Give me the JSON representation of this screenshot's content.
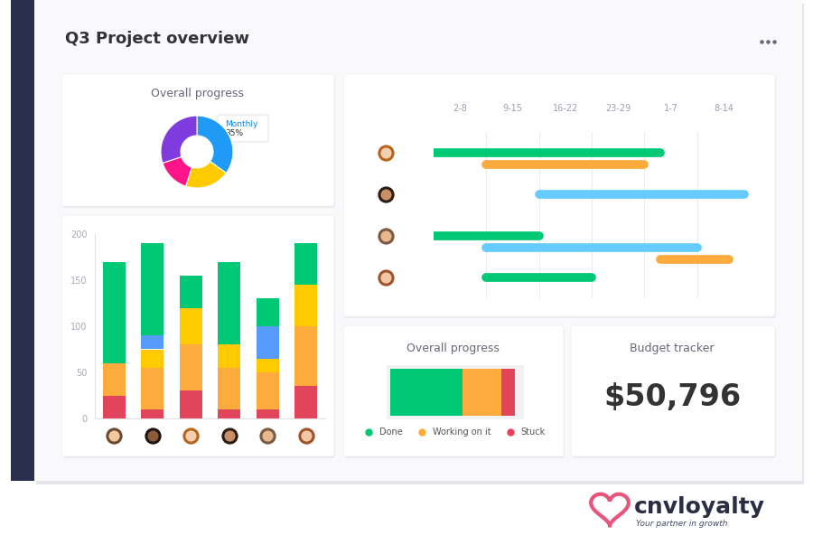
{
  "title": "Q3 Project overview",
  "chart_data": [
    {
      "type": "pie",
      "title": "Overall progress",
      "categories": [
        "Monthly",
        null,
        null,
        null
      ],
      "values": [
        35,
        20,
        15,
        30
      ],
      "value_labels": [
        "35%",
        null,
        null,
        null
      ],
      "colors": [
        "#1f9bf5",
        "#ffcb00",
        "#ff158a",
        "#7e3bdd"
      ],
      "data_labels": true
    },
    {
      "type": "bar",
      "stacked": true,
      "categories": [
        null,
        null,
        null,
        null,
        null,
        null
      ],
      "ylim": [
        0,
        200
      ],
      "yticks": [
        0,
        50,
        100,
        150,
        200
      ],
      "tick_labels": "y",
      "series": [
        {
          "color": "#e2445c",
          "values": [
            25,
            10,
            30,
            10,
            10,
            35
          ]
        },
        {
          "color": "#fdab3d",
          "values": [
            35,
            45,
            50,
            45,
            40,
            65
          ]
        },
        {
          "color": "#ffcb00",
          "values": [
            0,
            20,
            40,
            25,
            15,
            45
          ]
        },
        {
          "color": "#579bfc",
          "values": [
            0,
            15,
            0,
            0,
            35,
            0
          ]
        },
        {
          "color": "#00c875",
          "values": [
            110,
            100,
            35,
            90,
            30,
            45
          ]
        }
      ]
    },
    {
      "type": "gantt",
      "categories": [
        "2-8",
        "9-15",
        "16-22",
        "23-29",
        "1-7",
        "8-14"
      ],
      "xlim": [
        -0.5,
        5.5
      ],
      "grid": true,
      "tick_labels": "x",
      "rows": [
        null,
        null,
        null,
        null
      ],
      "tasks": [
        {
          "row": 0,
          "start": -0.5,
          "end": 3.8,
          "color": "#00c875"
        },
        {
          "row": 0,
          "start": 0.5,
          "end": 3.5,
          "color": "#fdab3d"
        },
        {
          "row": 1,
          "start": 1.5,
          "end": 5.4,
          "color": "#66ccff"
        },
        {
          "row": 2,
          "start": -0.5,
          "end": 1.5,
          "color": "#00c875"
        },
        {
          "row": 2,
          "start": 0.5,
          "end": 4.5,
          "color": "#66ccff"
        },
        {
          "row": 2,
          "start": 3.8,
          "end": 5.1,
          "color": "#fdab3d"
        },
        {
          "row": 3,
          "start": 0.5,
          "end": 2.5,
          "color": "#00c875"
        }
      ]
    },
    {
      "type": "bar",
      "title": "Overall progress",
      "orientation": "horizontal",
      "stacked": true,
      "categories": [
        null
      ],
      "xlim": [
        0,
        100
      ],
      "tick_labels": false,
      "legend": "lower center",
      "series": [
        {
          "name": "Done",
          "color": "#00c875",
          "values": [
            58
          ]
        },
        {
          "name": "Working on it",
          "color": "#fdab3d",
          "values": [
            31
          ]
        },
        {
          "name": "Stuck",
          "color": "#e2445c",
          "values": [
            11
          ]
        }
      ]
    }
  ],
  "budget_tracker": {
    "title": "Budget tracker",
    "value": "$50,796"
  },
  "logo": {
    "name": "cnvloyalty",
    "tagline": "Your partner in growth"
  }
}
